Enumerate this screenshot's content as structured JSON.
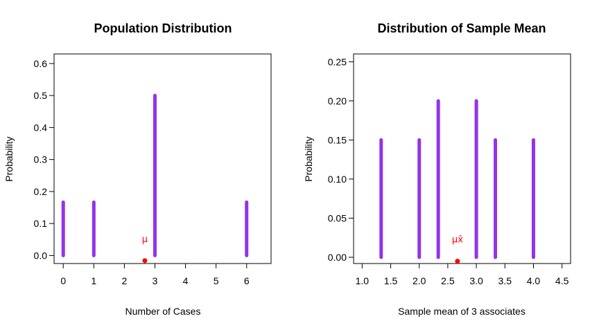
{
  "chart_data": [
    {
      "type": "bar",
      "title": "Population Distribution",
      "xlabel": "Number of Cases",
      "ylabel": "Probability",
      "xlim": [
        -0.3,
        6.8
      ],
      "ylim": [
        -0.025,
        0.63
      ],
      "x_ticks": [
        0,
        1,
        2,
        3,
        4,
        5,
        6
      ],
      "x_tick_labels": [
        "0",
        "1",
        "2",
        "3",
        "4",
        "5",
        "6"
      ],
      "x_tick_positions": [
        0,
        1,
        2,
        3,
        4,
        5,
        6
      ],
      "y_ticks": [
        0,
        0.1,
        0.2,
        0.3,
        0.4,
        0.5,
        0.6
      ],
      "y_tick_labels": [
        "0.0",
        "0.1",
        "0.2",
        "0.3",
        "0.4",
        "0.5",
        "0.6"
      ],
      "bar_color": "#9333EA",
      "bars": [
        {
          "x": 0,
          "value": 0.1667
        },
        {
          "x": 1,
          "value": 0.1667
        },
        {
          "x": 3,
          "value": 0.5
        },
        {
          "x": 6,
          "value": 0.1667
        }
      ],
      "mean_marker": {
        "x": 2.67,
        "y": -0.016,
        "label": "μ",
        "color": "#FF0000"
      }
    },
    {
      "type": "bar",
      "title": "Distribution of Sample Mean",
      "xlabel": "Sample mean of 3 associates",
      "ylabel": "Probability",
      "xlim": [
        0.85,
        4.65
      ],
      "ylim": [
        -0.008,
        0.26
      ],
      "x_ticks": [
        1.0,
        1.5,
        2.0,
        2.5,
        3.0,
        3.5,
        4.0,
        4.5
      ],
      "x_tick_labels": [
        "1.0",
        "1.5",
        "2.0",
        "2.5",
        "3.0",
        "3.5",
        "4.0",
        "4.5"
      ],
      "y_ticks": [
        0,
        0.05,
        0.1,
        0.15,
        0.2,
        0.25
      ],
      "y_tick_labels": [
        "0.00",
        "0.05",
        "0.10",
        "0.15",
        "0.20",
        "0.25"
      ],
      "bar_color": "#9333EA",
      "bars": [
        {
          "x": 1.333,
          "value": 0.15
        },
        {
          "x": 2.0,
          "value": 0.15
        },
        {
          "x": 2.333,
          "value": 0.2
        },
        {
          "x": 3.0,
          "value": 0.2
        },
        {
          "x": 3.333,
          "value": 0.15
        },
        {
          "x": 4.0,
          "value": 0.15
        }
      ],
      "mean_marker": {
        "x": 2.67,
        "y": -0.005,
        "label": "μx̄",
        "color": "#FF0000"
      }
    }
  ]
}
